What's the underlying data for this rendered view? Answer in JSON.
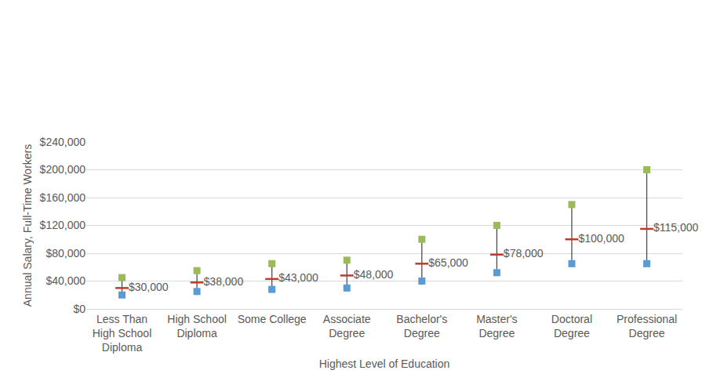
{
  "chart_data": {
    "type": "range",
    "x_label": "Highest Level of Education",
    "y_label": "Annual Salary, Full-Time Workers",
    "categories": [
      "Less Than High School Diploma",
      "High School Diploma",
      "Some College",
      "Associate Degree",
      "Bachelor's Degree",
      "Master's Degree",
      "Doctoral Degree",
      "Professional Degree"
    ],
    "series": [
      {
        "color": "#9bbb59",
        "marker": "square",
        "values": [
          45000,
          55000,
          65000,
          70000,
          100000,
          120000,
          150000,
          200000
        ]
      },
      {
        "color": "#c0392b",
        "marker": "dash",
        "values": [
          30000,
          38000,
          43000,
          48000,
          65000,
          78000,
          100000,
          115000
        ],
        "value_labels": [
          "$30,000",
          "$38,000",
          "$43,000",
          "$48,000",
          "$65,000",
          "$78,000",
          "$100,000",
          "$115,000"
        ]
      },
      {
        "color": "#5b9bd5",
        "marker": "square",
        "values": [
          20000,
          25000,
          28000,
          30000,
          40000,
          52000,
          65000,
          65000
        ]
      }
    ],
    "ylim": [
      0,
      240000
    ],
    "yticks": [
      {
        "value": 0,
        "label": "$0"
      },
      {
        "value": 40000,
        "label": "$40,000"
      },
      {
        "value": 80000,
        "label": "$80,000"
      },
      {
        "value": 120000,
        "label": "$120,000"
      },
      {
        "value": 160000,
        "label": "$160,000"
      },
      {
        "value": 200000,
        "label": "$200,000"
      },
      {
        "value": 240000,
        "label": "$240,000"
      }
    ],
    "grid": true
  }
}
